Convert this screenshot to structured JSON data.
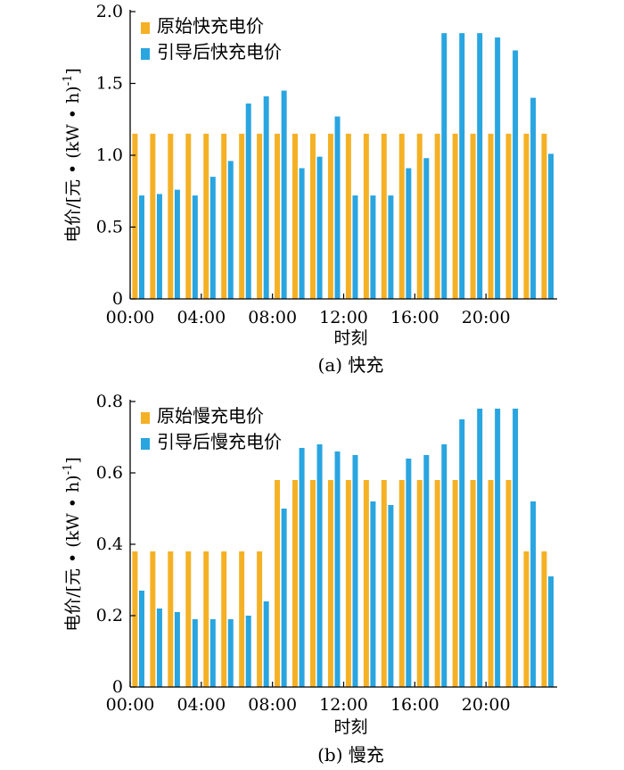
{
  "colors": {
    "original": "#F5B125",
    "guided": "#29A5E0"
  },
  "x_tick_labels": [
    "00:00",
    "04:00",
    "08:00",
    "12:00",
    "16:00",
    "20:00"
  ],
  "chart_data": [
    {
      "type": "bar",
      "panel_caption": "(a)  快充",
      "xlabel": "时刻",
      "ylabel": "电价/[元 • (kW • h)",
      "ylabel_sup": "-1",
      "ylabel_close": "]",
      "ylim": [
        0,
        2.0
      ],
      "yticks": [
        0,
        0.5,
        1.0,
        1.5,
        2.0
      ],
      "ytick_labels": [
        "0",
        "0.5",
        "1.0",
        "1.5",
        "2.0"
      ],
      "categories": [
        "00:00",
        "01:00",
        "02:00",
        "03:00",
        "04:00",
        "05:00",
        "06:00",
        "07:00",
        "08:00",
        "09:00",
        "10:00",
        "11:00",
        "12:00",
        "13:00",
        "14:00",
        "15:00",
        "16:00",
        "17:00",
        "18:00",
        "19:00",
        "20:00",
        "21:00",
        "22:00",
        "23:00"
      ],
      "legend_position": "top-left",
      "series": [
        {
          "name": "原始快充电价",
          "color": "#F5B125",
          "values": [
            1.15,
            1.15,
            1.15,
            1.15,
            1.15,
            1.15,
            1.15,
            1.15,
            1.15,
            1.15,
            1.15,
            1.15,
            1.15,
            1.15,
            1.15,
            1.15,
            1.15,
            1.15,
            1.15,
            1.15,
            1.15,
            1.15,
            1.15,
            1.15
          ]
        },
        {
          "name": "引导后快充电价",
          "color": "#29A5E0",
          "values": [
            0.72,
            0.73,
            0.76,
            0.72,
            0.85,
            0.96,
            1.36,
            1.41,
            1.45,
            0.91,
            0.99,
            1.27,
            0.72,
            0.72,
            0.72,
            0.91,
            0.98,
            1.85,
            1.85,
            1.85,
            1.82,
            1.73,
            1.4,
            1.01
          ]
        }
      ]
    },
    {
      "type": "bar",
      "panel_caption": "(b)  慢充",
      "xlabel": "时刻",
      "ylabel": "电价/[元 • (kW • h)",
      "ylabel_sup": "-1",
      "ylabel_close": "]",
      "ylim": [
        0,
        0.8
      ],
      "yticks": [
        0,
        0.2,
        0.4,
        0.6,
        0.8
      ],
      "ytick_labels": [
        "0",
        "0.2",
        "0.4",
        "0.6",
        "0.8"
      ],
      "categories": [
        "00:00",
        "01:00",
        "02:00",
        "03:00",
        "04:00",
        "05:00",
        "06:00",
        "07:00",
        "08:00",
        "09:00",
        "10:00",
        "11:00",
        "12:00",
        "13:00",
        "14:00",
        "15:00",
        "16:00",
        "17:00",
        "18:00",
        "19:00",
        "20:00",
        "21:00",
        "22:00",
        "23:00"
      ],
      "legend_position": "top-left",
      "series": [
        {
          "name": "原始慢充电价",
          "color": "#F5B125",
          "values": [
            0.38,
            0.38,
            0.38,
            0.38,
            0.38,
            0.38,
            0.38,
            0.38,
            0.58,
            0.58,
            0.58,
            0.58,
            0.58,
            0.58,
            0.58,
            0.58,
            0.58,
            0.58,
            0.58,
            0.58,
            0.58,
            0.58,
            0.38,
            0.38
          ]
        },
        {
          "name": "引导后慢充电价",
          "color": "#29A5E0",
          "values": [
            0.27,
            0.22,
            0.21,
            0.19,
            0.19,
            0.19,
            0.2,
            0.24,
            0.5,
            0.67,
            0.68,
            0.66,
            0.65,
            0.52,
            0.51,
            0.64,
            0.65,
            0.68,
            0.75,
            0.78,
            0.78,
            0.78,
            0.52,
            0.31
          ]
        }
      ]
    }
  ]
}
